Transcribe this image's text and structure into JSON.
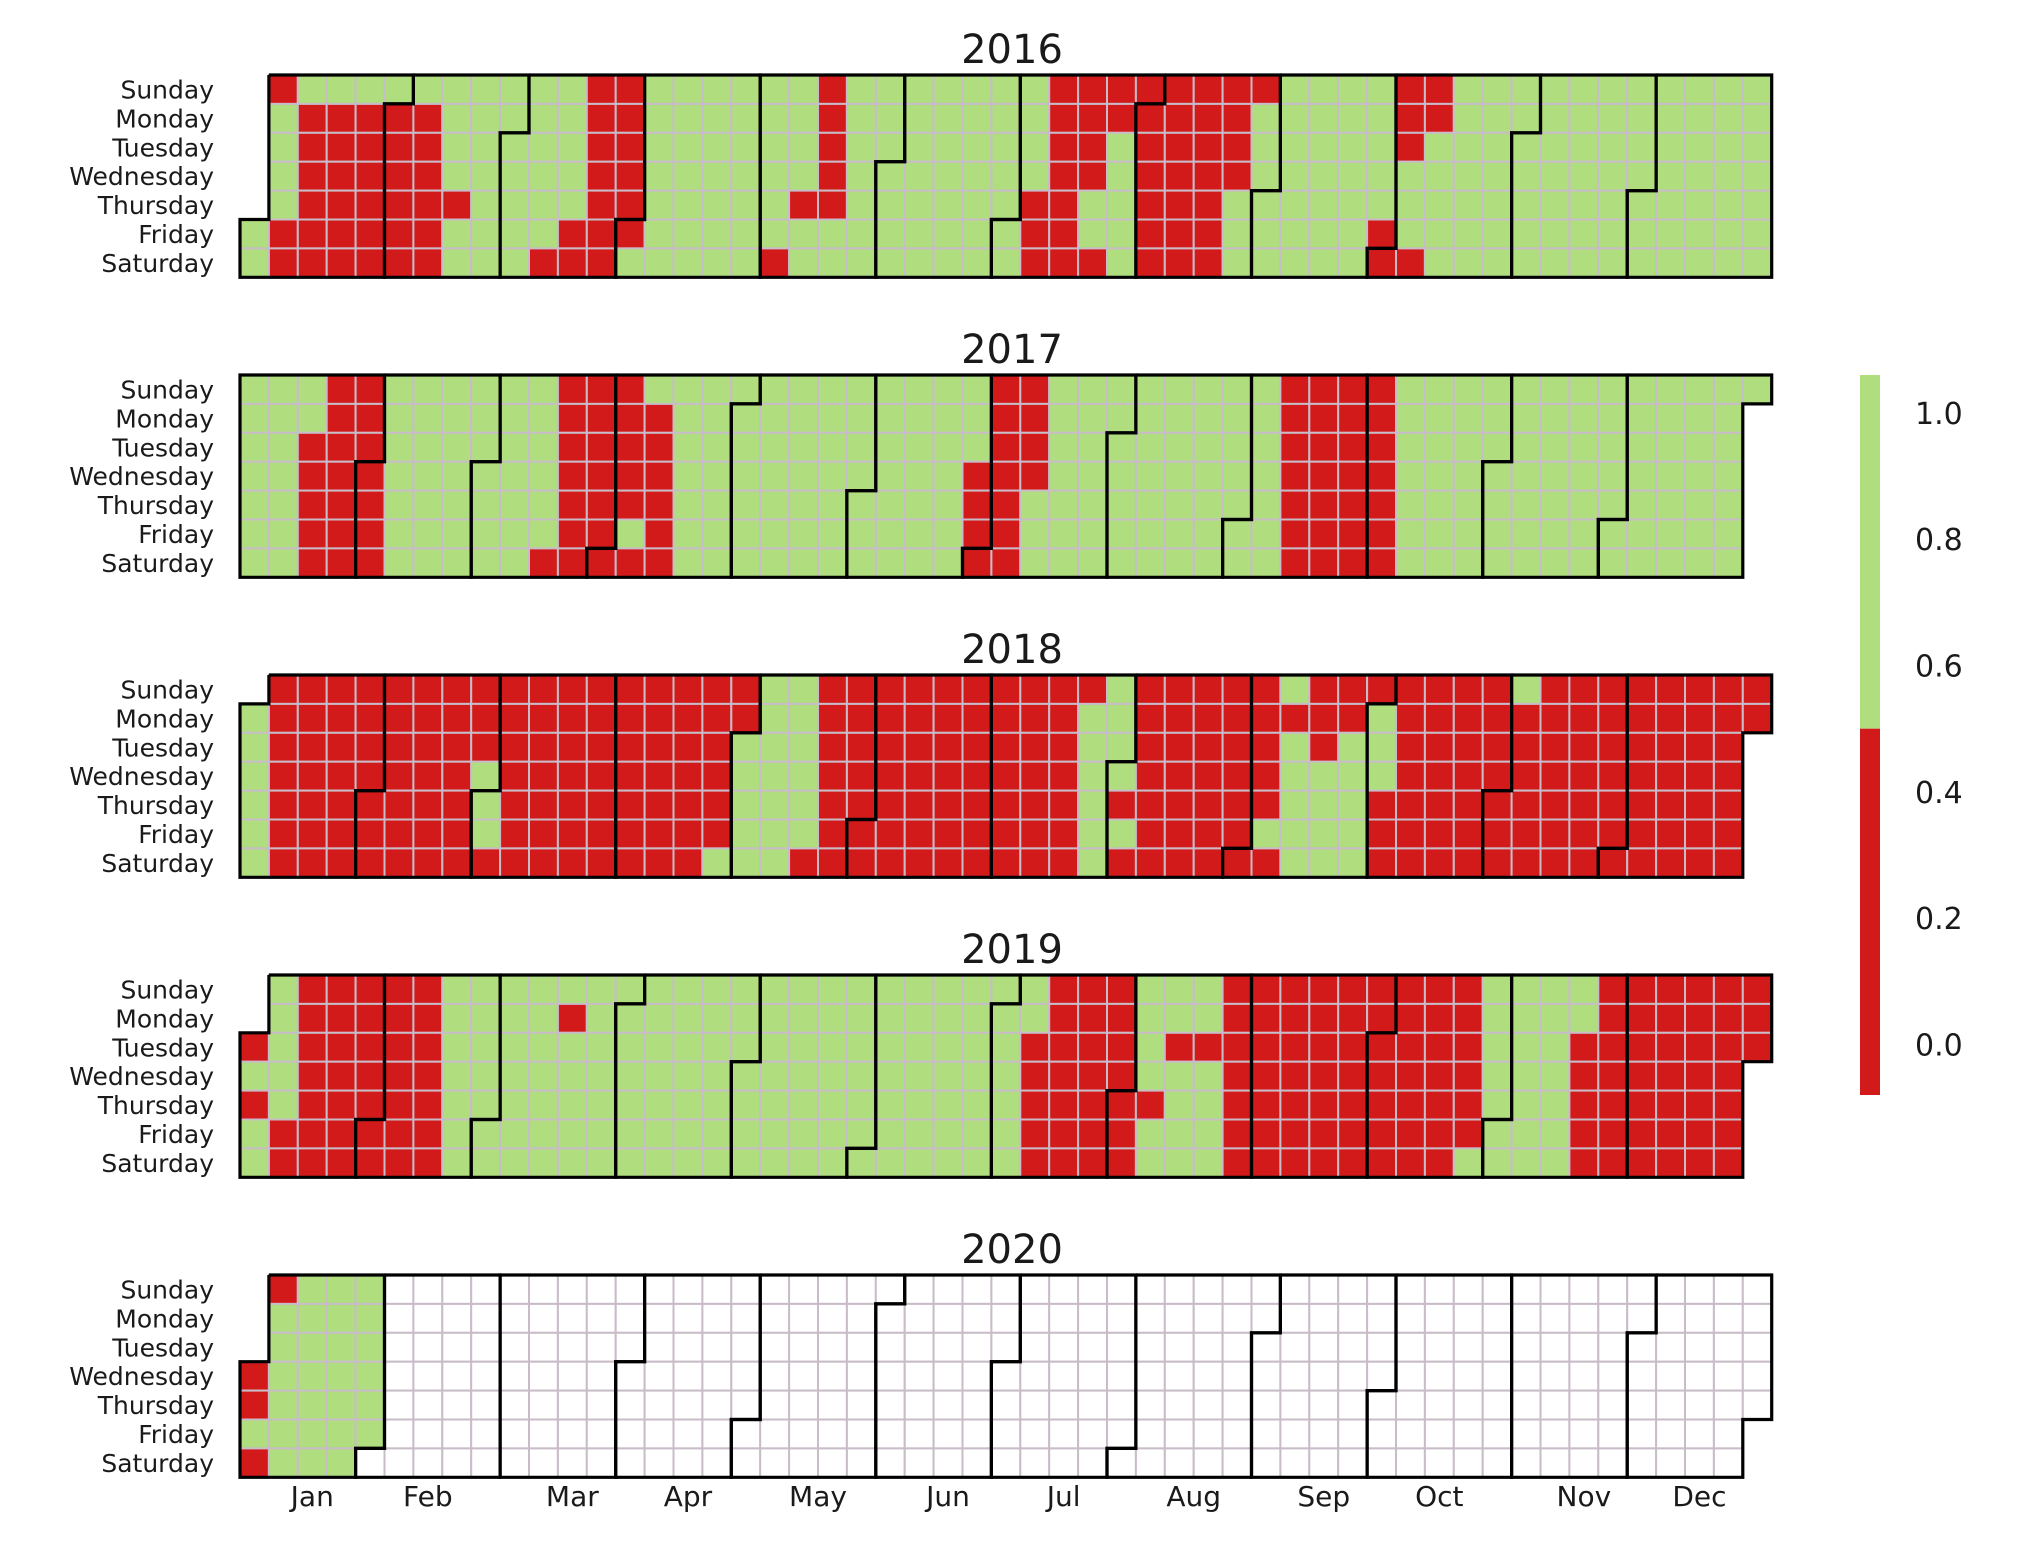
{
  "chart_data": {
    "type": "heatmap",
    "kind": "calendar",
    "grid": true,
    "colorbar": {
      "position": "right",
      "ticks": [
        "1.0",
        "0.8",
        "0.6",
        "0.4",
        "0.2",
        "0.0"
      ],
      "range": [
        -0.08,
        1.06
      ],
      "threshold": 0.5,
      "low_color": "#d31a1a",
      "high_color": "#b0de7e"
    },
    "colors": {
      "low": "#d31a1a",
      "high": "#b0de7e",
      "empty": "#ffffff",
      "grid": "#c8bcc8",
      "month_border": "#000000"
    },
    "value_encoding": "1 = 1.0 (green), 0 = 0.0 (red), null = no data",
    "day_labels": [
      "Sunday",
      "Monday",
      "Tuesday",
      "Wednesday",
      "Thursday",
      "Friday",
      "Saturday"
    ],
    "month_labels": [
      "Jan",
      "Feb",
      "Mar",
      "Apr",
      "May",
      "Jun",
      "Jul",
      "Aug",
      "Sep",
      "Oct",
      "Nov",
      "Dec"
    ],
    "red_day_ranges": {
      "2016": [
        [
          "01-03",
          "01-03"
        ],
        [
          "01-08",
          "01-09"
        ],
        [
          "01-11",
          "01-16"
        ],
        [
          "01-18",
          "01-23"
        ],
        [
          "01-25",
          "01-30"
        ],
        [
          "02-01",
          "02-06"
        ],
        [
          "02-08",
          "02-13"
        ],
        [
          "02-18",
          "02-18"
        ],
        [
          "03-12",
          "03-12"
        ],
        [
          "03-18",
          "03-19"
        ],
        [
          "03-20",
          "03-26"
        ],
        [
          "03-27",
          "04-01"
        ],
        [
          "05-07",
          "05-07"
        ],
        [
          "05-12",
          "05-12"
        ],
        [
          "05-15",
          "05-19"
        ],
        [
          "07-07",
          "07-09"
        ],
        [
          "07-10",
          "07-16"
        ],
        [
          "07-17",
          "07-20"
        ],
        [
          "07-23",
          "07-23"
        ],
        [
          "07-24",
          "07-25"
        ],
        [
          "07-31",
          "08-06"
        ],
        [
          "08-07",
          "08-13"
        ],
        [
          "08-14",
          "08-20"
        ],
        [
          "08-21",
          "08-24"
        ],
        [
          "08-28",
          "08-28"
        ],
        [
          "09-30",
          "09-30"
        ],
        [
          "10-01",
          "10-01"
        ],
        [
          "10-02",
          "10-02"
        ],
        [
          "10-03",
          "10-03"
        ],
        [
          "10-04",
          "10-04"
        ],
        [
          "10-08",
          "10-08"
        ],
        [
          "10-09",
          "10-10"
        ]
      ],
      "2017": [
        [
          "01-17",
          "01-21"
        ],
        [
          "01-22",
          "01-28"
        ],
        [
          "01-29",
          "02-04"
        ],
        [
          "03-18",
          "03-18"
        ],
        [
          "03-19",
          "03-25"
        ],
        [
          "03-26",
          "04-01"
        ],
        [
          "04-02",
          "04-06"
        ],
        [
          "04-08",
          "04-08"
        ],
        [
          "04-10",
          "04-15"
        ],
        [
          "06-28",
          "07-01"
        ],
        [
          "07-02",
          "07-08"
        ],
        [
          "07-09",
          "07-12"
        ],
        [
          "09-10",
          "09-16"
        ],
        [
          "09-17",
          "09-23"
        ],
        [
          "09-24",
          "09-30"
        ],
        [
          "10-01",
          "10-07"
        ]
      ],
      "2018": [
        [
          "01-07",
          "01-13"
        ],
        [
          "01-14",
          "01-20"
        ],
        [
          "01-21",
          "01-27"
        ],
        [
          "01-28",
          "02-03"
        ],
        [
          "02-04",
          "02-10"
        ],
        [
          "02-11",
          "02-17"
        ],
        [
          "02-18",
          "02-24"
        ],
        [
          "02-25",
          "02-27"
        ],
        [
          "03-03",
          "03-03"
        ],
        [
          "03-04",
          "03-10"
        ],
        [
          "03-11",
          "03-17"
        ],
        [
          "03-18",
          "03-24"
        ],
        [
          "03-25",
          "03-31"
        ],
        [
          "04-01",
          "04-07"
        ],
        [
          "04-08",
          "04-14"
        ],
        [
          "04-15",
          "04-21"
        ],
        [
          "04-22",
          "04-27"
        ],
        [
          "04-29",
          "04-30"
        ],
        [
          "05-19",
          "05-19"
        ],
        [
          "05-20",
          "05-26"
        ],
        [
          "05-27",
          "06-02"
        ],
        [
          "06-03",
          "06-09"
        ],
        [
          "06-10",
          "06-16"
        ],
        [
          "06-17",
          "06-23"
        ],
        [
          "06-24",
          "06-30"
        ],
        [
          "07-01",
          "07-07"
        ],
        [
          "07-08",
          "07-14"
        ],
        [
          "07-15",
          "07-21"
        ],
        [
          "07-22",
          "07-22"
        ],
        [
          "08-02",
          "08-02"
        ],
        [
          "08-04",
          "08-04"
        ],
        [
          "08-05",
          "08-11"
        ],
        [
          "08-12",
          "08-18"
        ],
        [
          "08-19",
          "08-25"
        ],
        [
          "08-26",
          "09-01"
        ],
        [
          "09-02",
          "09-06"
        ],
        [
          "09-08",
          "09-08"
        ],
        [
          "09-10",
          "09-10"
        ],
        [
          "09-16",
          "09-18"
        ],
        [
          "09-23",
          "09-24"
        ],
        [
          "09-30",
          "09-30"
        ],
        [
          "10-04",
          "10-06"
        ],
        [
          "10-07",
          "10-13"
        ],
        [
          "10-14",
          "10-20"
        ],
        [
          "10-21",
          "10-27"
        ],
        [
          "10-28",
          "11-03"
        ],
        [
          "11-05",
          "11-10"
        ],
        [
          "11-11",
          "11-17"
        ],
        [
          "11-18",
          "11-24"
        ],
        [
          "11-25",
          "12-01"
        ],
        [
          "12-02",
          "12-08"
        ],
        [
          "12-09",
          "12-15"
        ],
        [
          "12-16",
          "12-22"
        ],
        [
          "12-23",
          "12-29"
        ],
        [
          "12-30",
          "12-31"
        ]
      ],
      "2019": [
        [
          "01-01",
          "01-01"
        ],
        [
          "01-03",
          "01-03"
        ],
        [
          "01-11",
          "01-12"
        ],
        [
          "01-13",
          "01-19"
        ],
        [
          "01-20",
          "01-26"
        ],
        [
          "01-27",
          "02-02"
        ],
        [
          "02-03",
          "02-09"
        ],
        [
          "02-10",
          "02-16"
        ],
        [
          "03-18",
          "03-18"
        ],
        [
          "07-09",
          "07-13"
        ],
        [
          "07-14",
          "07-20"
        ],
        [
          "07-21",
          "07-27"
        ],
        [
          "07-28",
          "08-03"
        ],
        [
          "08-08",
          "08-08"
        ],
        [
          "08-13",
          "08-13"
        ],
        [
          "08-20",
          "08-20"
        ],
        [
          "08-25",
          "08-31"
        ],
        [
          "09-01",
          "09-07"
        ],
        [
          "09-08",
          "09-14"
        ],
        [
          "09-15",
          "09-21"
        ],
        [
          "09-22",
          "09-28"
        ],
        [
          "09-29",
          "10-05"
        ],
        [
          "10-06",
          "10-12"
        ],
        [
          "10-13",
          "10-19"
        ],
        [
          "10-20",
          "10-25"
        ],
        [
          "11-19",
          "11-23"
        ],
        [
          "11-24",
          "11-30"
        ],
        [
          "12-01",
          "12-07"
        ],
        [
          "12-08",
          "12-14"
        ],
        [
          "12-15",
          "12-21"
        ],
        [
          "12-22",
          "12-28"
        ],
        [
          "12-29",
          "12-31"
        ]
      ],
      "2020": [
        [
          "01-01",
          "01-01"
        ],
        [
          "01-02",
          "01-02"
        ],
        [
          "01-04",
          "01-04"
        ],
        [
          "01-05",
          "01-05"
        ]
      ]
    },
    "years": [
      {
        "year": "2016",
        "data_end": "2016-12-31"
      },
      {
        "year": "2017",
        "data_end": "2017-12-31"
      },
      {
        "year": "2018",
        "data_end": "2018-12-31"
      },
      {
        "year": "2019",
        "data_end": "2019-12-31"
      },
      {
        "year": "2020",
        "data_end": "2020-01-31"
      }
    ]
  }
}
